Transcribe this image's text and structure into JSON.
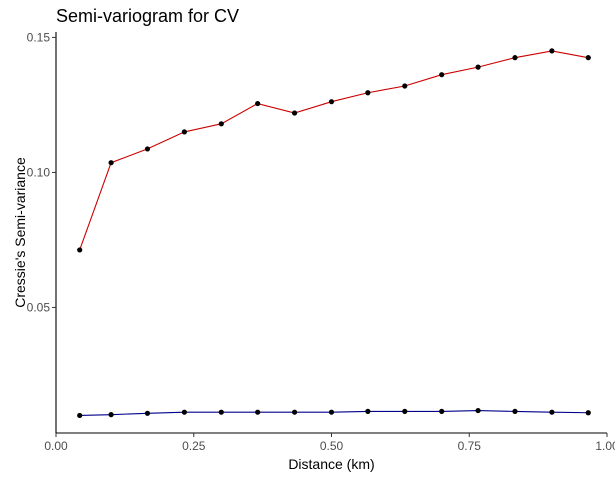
{
  "chart_data": {
    "type": "line",
    "title": "Semi-variogram for CV",
    "xlabel": "Distance (km)",
    "ylabel": "Cressie's Semi-variance",
    "xlim": [
      0.0,
      1.0
    ],
    "ylim": [
      0.0035,
      0.152
    ],
    "x_ticks": [
      {
        "value": 0.0,
        "label": "0.00"
      },
      {
        "value": 0.25,
        "label": "0.25"
      },
      {
        "value": 0.5,
        "label": "0.50"
      },
      {
        "value": 0.75,
        "label": "0.75"
      },
      {
        "value": 1.0,
        "label": "1.00"
      }
    ],
    "y_ticks": [
      {
        "value": 0.05,
        "label": "0.05"
      },
      {
        "value": 0.1,
        "label": "0.10"
      },
      {
        "value": 0.15,
        "label": "0.15"
      }
    ],
    "grid": false,
    "legend": "none",
    "x": [
      0.043,
      0.1,
      0.166,
      0.233,
      0.3,
      0.366,
      0.433,
      0.5,
      0.566,
      0.633,
      0.7,
      0.766,
      0.833,
      0.9,
      0.966
    ],
    "series": [
      {
        "color": "#cc0000",
        "marker_color": "#000000",
        "values": [
          0.0713,
          0.1036,
          0.1087,
          0.115,
          0.118,
          0.1255,
          0.122,
          0.1262,
          0.1295,
          0.132,
          0.1362,
          0.139,
          0.1425,
          0.145,
          0.1425
        ]
      },
      {
        "color": "#00008b",
        "marker_color": "#000000",
        "values": [
          0.01,
          0.0103,
          0.0108,
          0.0112,
          0.0112,
          0.0112,
          0.0112,
          0.0112,
          0.0115,
          0.0115,
          0.0115,
          0.0118,
          0.0115,
          0.0112,
          0.011
        ]
      }
    ]
  }
}
